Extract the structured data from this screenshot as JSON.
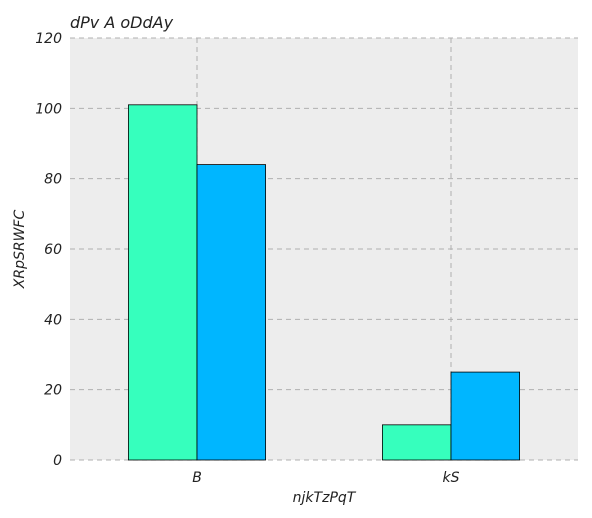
{
  "chart_data": {
    "type": "bar",
    "title": "dPv A oDdAy",
    "xlabel": "njkTzPqT",
    "ylabel": "XRpSRWFC",
    "categories": [
      "B",
      "kS"
    ],
    "series": [
      {
        "values": [
          101,
          10
        ],
        "color": "#36ffbd"
      },
      {
        "values": [
          84,
          25
        ],
        "color": "#00b6ff"
      }
    ],
    "ylim": [
      0,
      120
    ],
    "yticks": [
      0,
      20,
      40,
      60,
      80,
      100,
      120
    ],
    "grid": true,
    "legend": "none",
    "background": "#ededed"
  }
}
